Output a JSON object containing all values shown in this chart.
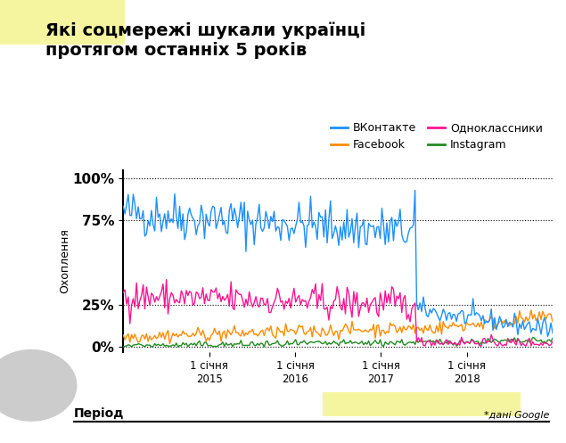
{
  "title": "Які соцмережі шукали українці\nпротягом останніх 5 років",
  "ylabel": "Охоплення",
  "xlabel": "Період",
  "footnote": "*дані Google",
  "ytick_labels": [
    "0%",
    "25%",
    "75%",
    "100%"
  ],
  "xtick_labels": [
    "1 січня\n2015",
    "1 січня\n2016",
    "1 січня\n2017",
    "1 січня\n2018"
  ],
  "legend": [
    {
      "label": "ВКонтакте",
      "color": "#1e90ff"
    },
    {
      "label": "Facebook",
      "color": "#ff8c00"
    },
    {
      "label": "Одноклассники",
      "color": "#ff1493"
    },
    {
      "label": "Instagram",
      "color": "#228B22"
    }
  ],
  "bg_color": "#ffffff",
  "title_color": "#000000",
  "highlight_color": "#f5f5a0",
  "gray_circle_color": "#cccccc",
  "n_points": 260,
  "vk_noise": 7,
  "ok_noise": 5,
  "fb_noise": 2,
  "ig_noise": 1
}
